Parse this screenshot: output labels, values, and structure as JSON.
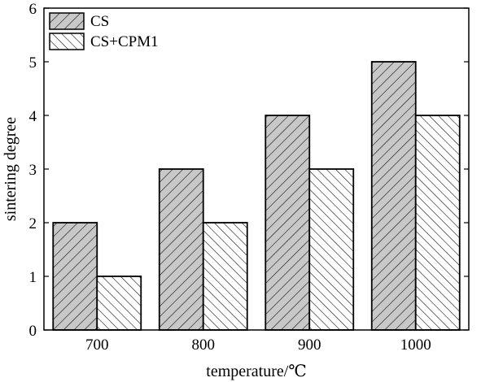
{
  "chart_data": {
    "type": "bar",
    "categories": [
      "700",
      "800",
      "900",
      "1000"
    ],
    "series": [
      {
        "name": "CS",
        "values": [
          2,
          3,
          4,
          5
        ],
        "fill": "#c8c8c8",
        "hatch": "forward-diagonal"
      },
      {
        "name": "CS+CPM1",
        "values": [
          1,
          2,
          3,
          4
        ],
        "fill": "#ffffff",
        "hatch": "backward-diagonal"
      }
    ],
    "xlabel": "temperature/℃",
    "ylabel": "sintering degree",
    "ylim": [
      0,
      6
    ],
    "yticks": [
      0,
      1,
      2,
      3,
      4,
      5,
      6
    ],
    "grid": false,
    "legend_position": "top-left"
  }
}
